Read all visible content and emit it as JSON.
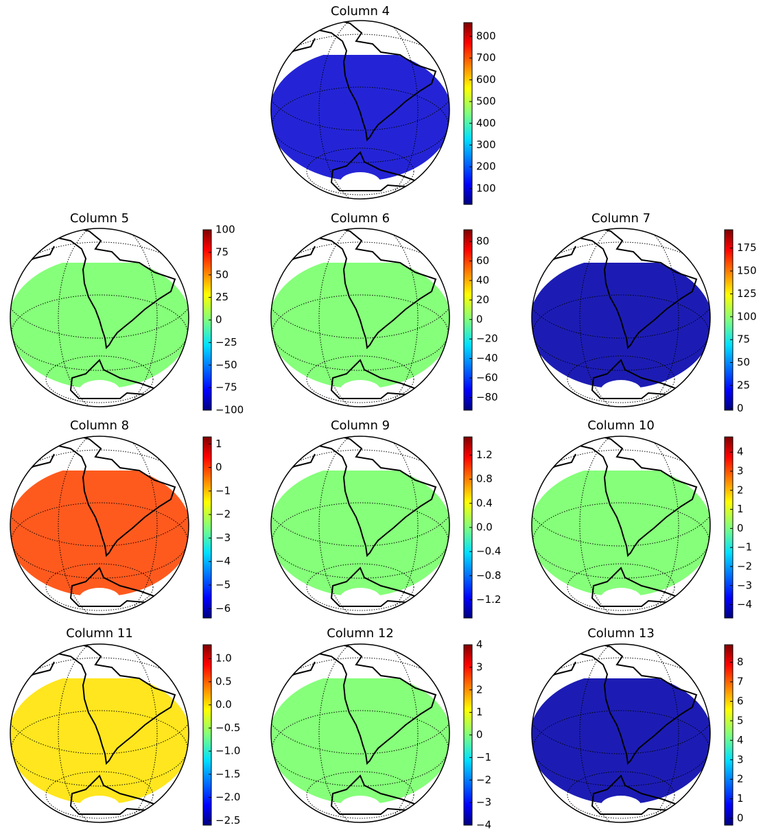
{
  "chart_data": [
    {
      "type": "map",
      "title": "Column 4",
      "color": "#2424d6",
      "ylim": [
        27,
        863
      ],
      "yticks": [
        100,
        200,
        300,
        400,
        500,
        600,
        700,
        800
      ]
    },
    {
      "type": "map",
      "title": "Column 5",
      "color": "#86ff7a",
      "ylim": [
        -100,
        100
      ],
      "yticks": [
        {
          "value": -100,
          "label": "−100"
        },
        {
          "value": -75,
          "label": "−75"
        },
        {
          "value": -50,
          "label": "−50"
        },
        {
          "value": -25,
          "label": "−25"
        },
        0,
        25,
        50,
        75,
        100
      ]
    },
    {
      "type": "map",
      "title": "Column 6",
      "color": "#86ff7a",
      "ylim": [
        -93,
        92
      ],
      "yticks": [
        {
          "value": -80,
          "label": "−80"
        },
        {
          "value": -60,
          "label": "−60"
        },
        {
          "value": -40,
          "label": "−40"
        },
        {
          "value": -20,
          "label": "−20"
        },
        0,
        20,
        40,
        60,
        80
      ]
    },
    {
      "type": "map",
      "title": "Column 7",
      "color": "#1c1cb4",
      "ylim": [
        -2,
        195
      ],
      "yticks": [
        0,
        25,
        50,
        75,
        100,
        125,
        150,
        175
      ]
    },
    {
      "type": "map",
      "title": "Column 8",
      "color": "#ff5a1e",
      "ylim": [
        -6.4,
        1.3
      ],
      "yticks": [
        {
          "value": -6,
          "label": "−6"
        },
        {
          "value": -5,
          "label": "−5"
        },
        {
          "value": -4,
          "label": "−4"
        },
        {
          "value": -3,
          "label": "−3"
        },
        {
          "value": -2,
          "label": "−2"
        },
        {
          "value": -1,
          "label": "−1"
        },
        0,
        1
      ]
    },
    {
      "type": "map",
      "title": "Column 9",
      "color": "#86ff7a",
      "ylim": [
        -1.5,
        1.5
      ],
      "yticks": [
        {
          "value": -1.2,
          "label": "−1.2"
        },
        {
          "value": -0.8,
          "label": "−0.8"
        },
        {
          "value": -0.4,
          "label": "−0.4"
        },
        {
          "value": 0,
          "label": "0.0"
        },
        0.4,
        0.8,
        1.2
      ]
    },
    {
      "type": "map",
      "title": "Column 10",
      "color": "#86ff7a",
      "ylim": [
        -4.7,
        4.8
      ],
      "yticks": [
        {
          "value": -4,
          "label": "−4"
        },
        {
          "value": -3,
          "label": "−3"
        },
        {
          "value": -2,
          "label": "−2"
        },
        {
          "value": -1,
          "label": "−1"
        },
        0,
        1,
        2,
        3,
        4
      ]
    },
    {
      "type": "map",
      "title": "Column 11",
      "color": "#ffe61e",
      "ylim": [
        -2.6,
        1.3
      ],
      "yticks": [
        {
          "value": -2.5,
          "label": "−2.5"
        },
        {
          "value": -2,
          "label": "−2.0"
        },
        {
          "value": -1.5,
          "label": "−1.5"
        },
        {
          "value": -1,
          "label": "−1.0"
        },
        {
          "value": -0.5,
          "label": "−0.5"
        },
        {
          "value": 0,
          "label": "0.0"
        },
        0.5,
        {
          "value": 1,
          "label": "1.0"
        }
      ]
    },
    {
      "type": "map",
      "title": "Column 12",
      "color": "#86ff7a",
      "ylim": [
        -4,
        4
      ],
      "yticks": [
        {
          "value": -4,
          "label": "−4"
        },
        {
          "value": -3,
          "label": "−3"
        },
        {
          "value": -2,
          "label": "−2"
        },
        {
          "value": -1,
          "label": "−1"
        },
        0,
        1,
        2,
        3,
        4
      ]
    },
    {
      "type": "map",
      "title": "Column 13",
      "color": "#1c1cb4",
      "ylim": [
        -0.35,
        8.9
      ],
      "yticks": [
        0,
        1,
        2,
        3,
        4,
        5,
        6,
        7,
        8
      ]
    }
  ]
}
